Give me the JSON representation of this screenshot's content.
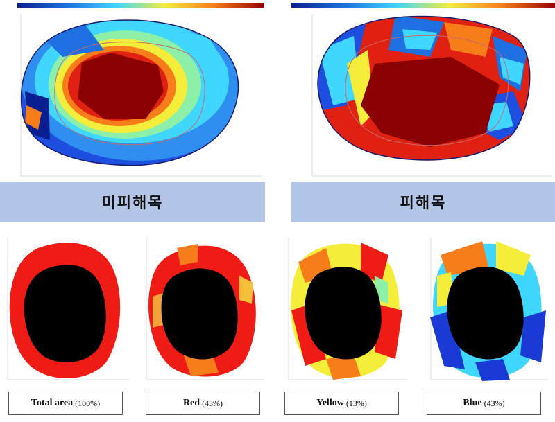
{
  "top_panels": [
    {
      "caption": "미피해목"
    },
    {
      "caption": "피해목"
    }
  ],
  "bottom_panels": [
    {
      "name": "Total area",
      "percent": "(100%)"
    },
    {
      "name": "Red",
      "percent": "(43%)"
    },
    {
      "name": "Yellow",
      "percent": "(13%)"
    },
    {
      "name": "Blue",
      "percent": "(43%)"
    }
  ],
  "colors": {
    "caption_band": "#b4c6e7",
    "dark_red": "#8b0000",
    "red": "#ee1c14",
    "yellow": "#f4ee3a",
    "cyan": "#3fd6ff",
    "blue": "#1a3ad6"
  }
}
